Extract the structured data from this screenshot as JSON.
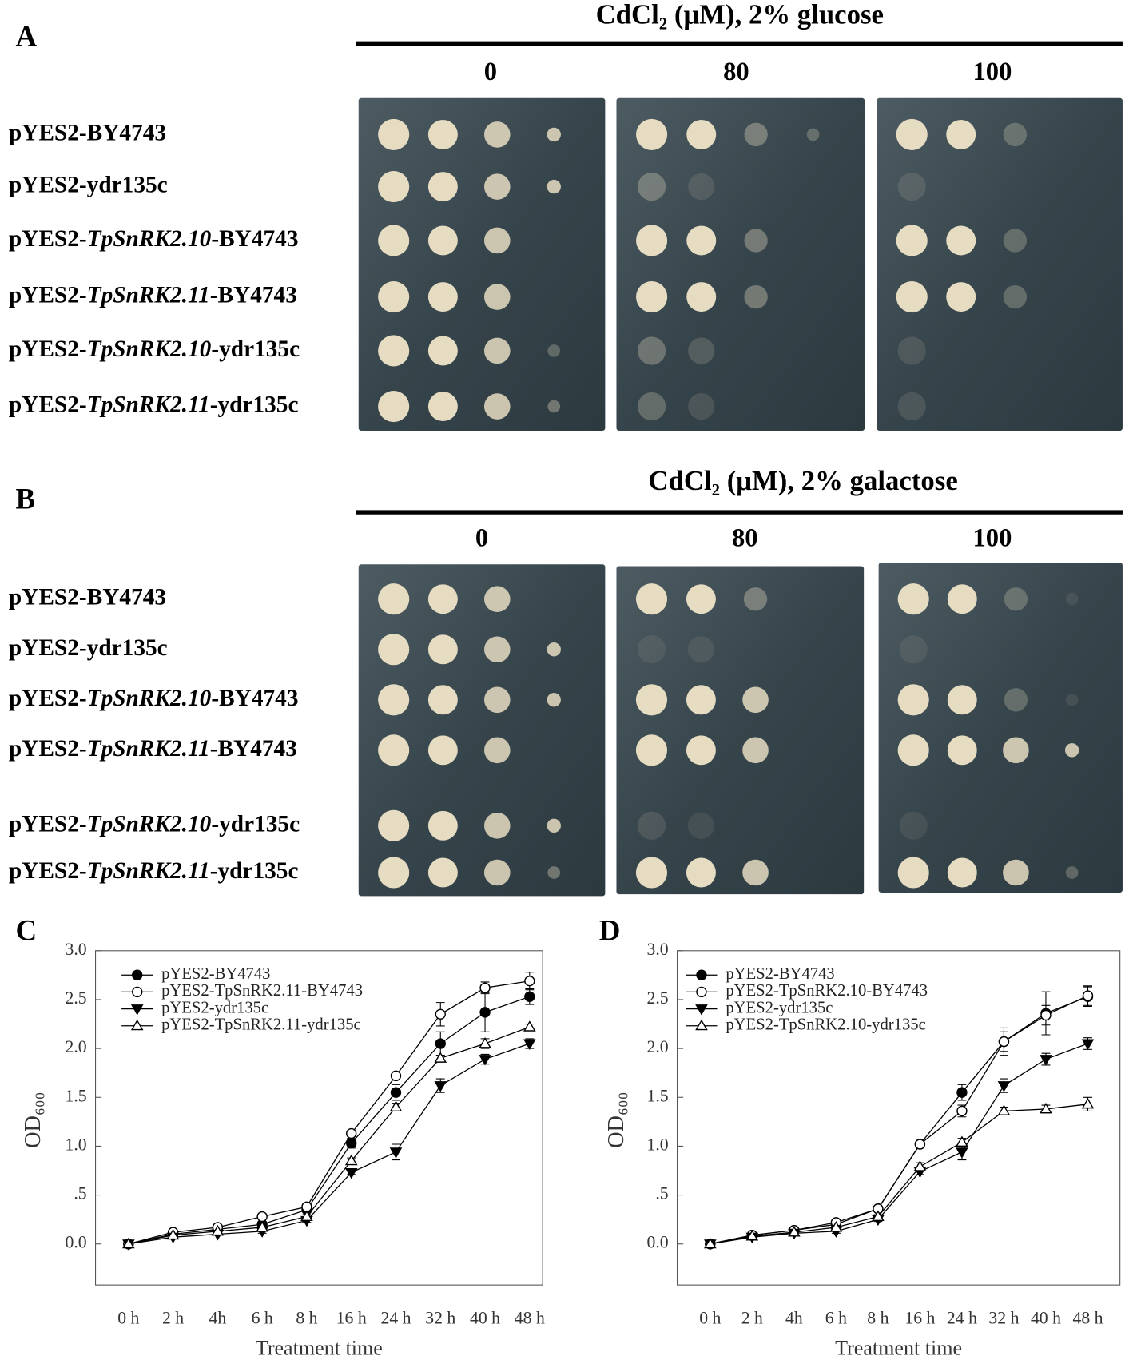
{
  "panels": [
    {
      "label": "A",
      "title": "CdCl₂ (μM), 2% glucose",
      "concentrations": [
        "0",
        "80",
        "100"
      ],
      "strains": [
        "pYES2-BY4743",
        "pYES2-ydr135c",
        "pYES2-TpSnRK2.10-BY4743",
        "pYES2-TpSnRK2.11-BY4743",
        "pYES2-TpSnRK2.10-ydr135c",
        "pYES2-TpSnRK2.11-ydr135c"
      ]
    },
    {
      "label": "B",
      "title": "CdCl₂ (μM), 2% galactose",
      "concentrations": [
        "0",
        "80",
        "100"
      ],
      "strains": [
        "pYES2-BY4743",
        "pYES2-ydr135c",
        "pYES2-TpSnRK2.10-BY4743",
        "pYES2-TpSnRK2.11-BY4743",
        "pYES2-TpSnRK2.10-ydr135c",
        "pYES2-TpSnRK2.11-ydr135c"
      ]
    }
  ],
  "chart_data": [
    {
      "type": "line",
      "panel_label": "C",
      "x_label": "Treatment time",
      "y_label": "OD₆₀₀",
      "categories": [
        "0 h",
        "2 h",
        "4h",
        "6 h",
        "8 h",
        "16 h",
        "24 h",
        "32 h",
        "40 h",
        "48 h"
      ],
      "ylim": [
        -0.42,
        3.0
      ],
      "yticks": [
        {
          "value": 0,
          "label": "0.0"
        },
        {
          "value": 0.5,
          "label": ".5"
        },
        {
          "value": 1,
          "label": "1.0"
        },
        1.5,
        {
          "value": 2,
          "label": "2.0"
        },
        2.5,
        {
          "value": 3,
          "label": "3.0"
        }
      ],
      "legend": "upper-left",
      "series": [
        {
          "name": "pYES2-BY4743",
          "color": "#000000",
          "marker": "filled-circle",
          "values": [
            0,
            0.1,
            0.15,
            0.2,
            0.35,
            1.03,
            1.55,
            2.05,
            2.37,
            2.53
          ],
          "errors": [
            0.02,
            0.02,
            0.02,
            0.03,
            0.03,
            0.05,
            0.08,
            0.12,
            0.2,
            0.08
          ]
        },
        {
          "name": "pYES2-TpSnRK2.11-BY4743",
          "color": "#000000",
          "marker": "open-circle",
          "values": [
            0,
            0.12,
            0.17,
            0.28,
            0.38,
            1.13,
            1.72,
            2.35,
            2.62,
            2.69
          ],
          "errors": [
            0.02,
            0.02,
            0.02,
            0.02,
            0.02,
            0.03,
            0.04,
            0.12,
            0.06,
            0.09
          ]
        },
        {
          "name": "pYES2-ydr135c",
          "color": "#000000",
          "marker": "filled-triangle-down",
          "values": [
            0,
            0.07,
            0.1,
            0.13,
            0.24,
            0.73,
            0.94,
            1.62,
            1.89,
            2.05
          ],
          "errors": [
            0.01,
            0.01,
            0.01,
            0.02,
            0.02,
            0.02,
            0.08,
            0.07,
            0.05,
            0.05
          ]
        },
        {
          "name": "pYES2-TpSnRK2.11-ydr135c",
          "color": "#000000",
          "marker": "open-triangle-up",
          "values": [
            0,
            0.09,
            0.13,
            0.17,
            0.28,
            0.85,
            1.4,
            1.9,
            2.05,
            2.22
          ],
          "errors": [
            0.01,
            0.01,
            0.01,
            0.02,
            0.02,
            0.03,
            0.04,
            0.03,
            0.05,
            0.03
          ]
        }
      ]
    },
    {
      "type": "line",
      "panel_label": "D",
      "x_label": "Treatment time",
      "y_label": "OD₆₀₀",
      "categories": [
        "0 h",
        "2 h",
        "4h",
        "6 h",
        "8 h",
        "16 h",
        "24 h",
        "32 h",
        "40 h",
        "48 h"
      ],
      "ylim": [
        -0.42,
        3.0
      ],
      "yticks": [
        {
          "value": 0,
          "label": "0.0"
        },
        {
          "value": 0.5,
          "label": ".5"
        },
        {
          "value": 1,
          "label": "1.0"
        },
        1.5,
        {
          "value": 2,
          "label": "2.0"
        },
        2.5,
        {
          "value": 3,
          "label": "3.0"
        }
      ],
      "legend": "upper-left",
      "series": [
        {
          "name": "pYES2-BY4743",
          "color": "#000000",
          "marker": "filled-circle",
          "values": [
            0,
            0.09,
            0.14,
            0.2,
            0.36,
            1.02,
            1.55,
            2.07,
            2.36,
            2.53
          ],
          "errors": [
            0.01,
            0.02,
            0.02,
            0.02,
            0.02,
            0.04,
            0.08,
            0.1,
            0.22,
            0.1
          ]
        },
        {
          "name": "pYES2-TpSnRK2.10-BY4743",
          "color": "#000000",
          "marker": "open-circle",
          "values": [
            0,
            0.09,
            0.14,
            0.22,
            0.36,
            1.02,
            1.36,
            2.07,
            2.34,
            2.54
          ],
          "errors": [
            0.01,
            0.02,
            0.02,
            0.02,
            0.02,
            0.03,
            0.06,
            0.14,
            0.1,
            0.1
          ]
        },
        {
          "name": "pYES2-ydr135c",
          "color": "#000000",
          "marker": "filled-triangle-down",
          "values": [
            0,
            0.07,
            0.11,
            0.13,
            0.25,
            0.74,
            0.94,
            1.62,
            1.89,
            2.05
          ],
          "errors": [
            0.01,
            0.01,
            0.01,
            0.02,
            0.02,
            0.03,
            0.08,
            0.07,
            0.06,
            0.06
          ]
        },
        {
          "name": "pYES2-TpSnRK2.10-ydr135c",
          "color": "#000000",
          "marker": "open-triangle-up",
          "values": [
            0,
            0.08,
            0.12,
            0.17,
            0.28,
            0.79,
            1.04,
            1.36,
            1.38,
            1.43
          ],
          "errors": [
            0.01,
            0.01,
            0.01,
            0.02,
            0.02,
            0.04,
            0.04,
            0.04,
            0.04,
            0.07
          ]
        }
      ]
    }
  ]
}
